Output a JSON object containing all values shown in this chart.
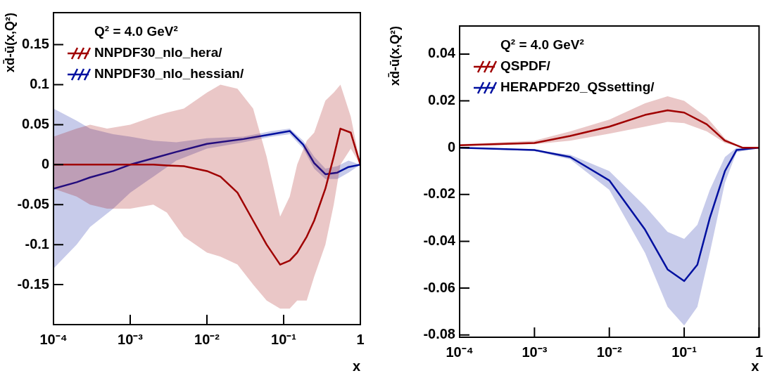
{
  "chart_data": [
    {
      "type": "line",
      "ylabel": "xd̄-ū(x,Q²)",
      "xlabel": "x",
      "legend_title": "Q² = 4.0 GeV²",
      "legend": "top left",
      "grid": false,
      "log": "x",
      "marker": "none",
      "xlim": [
        0.0001,
        1
      ],
      "xticks": [
        {
          "value": 0.0001,
          "label": "10⁻⁴"
        },
        {
          "value": 0.001,
          "label": "10⁻³"
        },
        {
          "value": 0.01,
          "label": "10⁻²"
        },
        {
          "value": 0.1,
          "label": "10⁻¹"
        },
        1
      ],
      "ylim": [
        -0.2,
        0.19
      ],
      "yticks": [
        -0.15,
        -0.1,
        -0.05,
        0,
        0.05,
        0.1,
        0.15
      ],
      "series": [
        {
          "name": "NNPDF30_nlo_hera/",
          "color": "#a00000",
          "x": [
            0.0001,
            0.0002,
            0.0003,
            0.0005,
            0.001,
            0.002,
            0.003,
            0.005,
            0.01,
            0.015,
            0.025,
            0.04,
            0.06,
            0.09,
            0.12,
            0.15,
            0.2,
            0.25,
            0.35,
            0.45,
            0.55,
            0.75,
            1
          ],
          "values": [
            0,
            0,
            0,
            0,
            0,
            0,
            -0.001,
            -0.002,
            -0.008,
            -0.015,
            -0.035,
            -0.07,
            -0.1,
            -0.125,
            -0.12,
            -0.11,
            -0.09,
            -0.07,
            -0.03,
            0.01,
            0.045,
            0.04,
            0
          ],
          "upper": [
            0.035,
            0.045,
            0.05,
            0.045,
            0.05,
            0.06,
            0.065,
            0.07,
            0.09,
            0.1,
            0.095,
            0.07,
            0.01,
            -0.065,
            -0.04,
            0,
            0.03,
            0.04,
            0.08,
            0.09,
            0.1,
            0.06,
            0
          ],
          "lower": [
            -0.03,
            -0.04,
            -0.05,
            -0.055,
            -0.055,
            -0.05,
            -0.06,
            -0.09,
            -0.11,
            -0.115,
            -0.125,
            -0.15,
            -0.17,
            -0.18,
            -0.18,
            -0.17,
            -0.17,
            -0.14,
            -0.1,
            -0.05,
            0,
            0.02,
            0
          ]
        },
        {
          "name": "NNPDF30_nlo_hessian/",
          "color": "#0010a0",
          "x": [
            0.0001,
            0.0002,
            0.0003,
            0.0006,
            0.001,
            0.002,
            0.004,
            0.01,
            0.03,
            0.07,
            0.12,
            0.18,
            0.25,
            0.35,
            0.5,
            0.7,
            1
          ],
          "values": [
            -0.03,
            -0.022,
            -0.016,
            -0.008,
            0,
            0.008,
            0.016,
            0.026,
            0.032,
            0.038,
            0.042,
            0.025,
            0.002,
            -0.012,
            -0.01,
            -0.003,
            0
          ],
          "upper": [
            0.07,
            0.055,
            0.045,
            0.038,
            0.035,
            0.03,
            0.028,
            0.033,
            0.035,
            0.042,
            0.045,
            0.03,
            0.01,
            -0.005,
            -0.002,
            0.005,
            0
          ],
          "lower": [
            -0.13,
            -0.1,
            -0.078,
            -0.055,
            -0.035,
            -0.015,
            0.005,
            0.02,
            0.028,
            0.035,
            0.038,
            0.02,
            -0.005,
            -0.018,
            -0.018,
            -0.01,
            0
          ]
        }
      ]
    },
    {
      "type": "line",
      "ylabel": "xd̄-ū(x,Q²)",
      "xlabel": "x",
      "legend_title": "Q² = 4.0 GeV²",
      "legend": "top left",
      "grid": false,
      "log": "x",
      "marker": "none",
      "xlim": [
        0.0001,
        1
      ],
      "xticks": [
        {
          "value": 0.0001,
          "label": "10⁻⁴"
        },
        {
          "value": 0.001,
          "label": "10⁻³"
        },
        {
          "value": 0.01,
          "label": "10⁻²"
        },
        {
          "value": 0.1,
          "label": "10⁻¹"
        },
        1
      ],
      "ylim": [
        -0.081,
        0.052
      ],
      "yticks": [
        -0.08,
        -0.06,
        -0.04,
        -0.02,
        0,
        0.02,
        0.04
      ],
      "series": [
        {
          "name": "QSPDF/",
          "color": "#a00000",
          "x": [
            0.0001,
            0.001,
            0.003,
            0.01,
            0.03,
            0.06,
            0.1,
            0.2,
            0.35,
            0.6,
            1
          ],
          "values": [
            0.001,
            0.002,
            0.005,
            0.009,
            0.014,
            0.016,
            0.015,
            0.01,
            0.003,
            0,
            0
          ],
          "upper": [
            0.0015,
            0.003,
            0.007,
            0.012,
            0.019,
            0.022,
            0.02,
            0.013,
            0.004,
            0,
            0
          ],
          "lower": [
            0.0008,
            0.0015,
            0.003,
            0.006,
            0.009,
            0.011,
            0.0105,
            0.007,
            0.002,
            0,
            0
          ]
        },
        {
          "name": "HERAPDF20_QSsetting/",
          "color": "#0010a0",
          "x": [
            0.0001,
            0.001,
            0.003,
            0.01,
            0.03,
            0.06,
            0.1,
            0.15,
            0.22,
            0.35,
            0.5,
            1
          ],
          "values": [
            0,
            -0.001,
            -0.004,
            -0.014,
            -0.035,
            -0.052,
            -0.057,
            -0.05,
            -0.03,
            -0.01,
            -0.001,
            0
          ],
          "upper": [
            0,
            -0.001,
            -0.003,
            -0.01,
            -0.025,
            -0.036,
            -0.039,
            -0.033,
            -0.018,
            -0.004,
            0,
            0
          ],
          "lower": [
            0,
            -0.0015,
            -0.005,
            -0.018,
            -0.045,
            -0.068,
            -0.076,
            -0.068,
            -0.045,
            -0.015,
            -0.002,
            0
          ]
        }
      ]
    }
  ]
}
